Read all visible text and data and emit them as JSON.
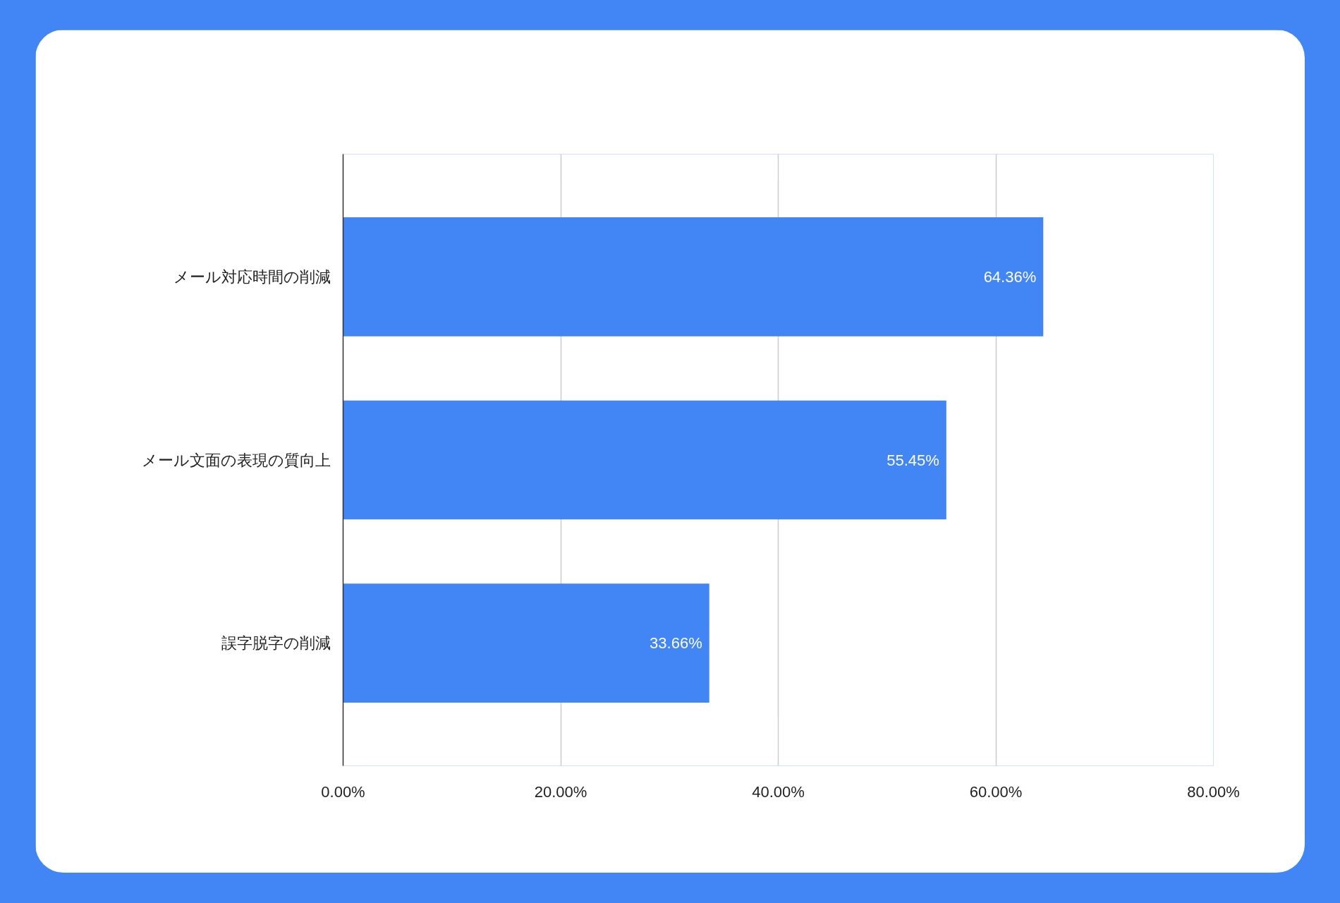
{
  "chart_data": {
    "type": "bar",
    "orientation": "horizontal",
    "categories": [
      "メール対応時間の削減",
      "メール文面の表現の質向上",
      "誤字脱字の削減"
    ],
    "values": [
      64.36,
      55.45,
      33.66
    ],
    "color": "#4285f4",
    "value_labels": [
      "64.36%",
      "55.45%",
      "33.66%"
    ],
    "xlim": [
      0,
      80
    ],
    "xticks": [
      {
        "value": 0,
        "label": "0.00%"
      },
      {
        "value": 20,
        "label": "20.00%"
      },
      {
        "value": 40,
        "label": "40.00%"
      },
      {
        "value": 60,
        "label": "60.00%"
      },
      {
        "value": 80,
        "label": "80.00%"
      }
    ],
    "grid": "x"
  }
}
